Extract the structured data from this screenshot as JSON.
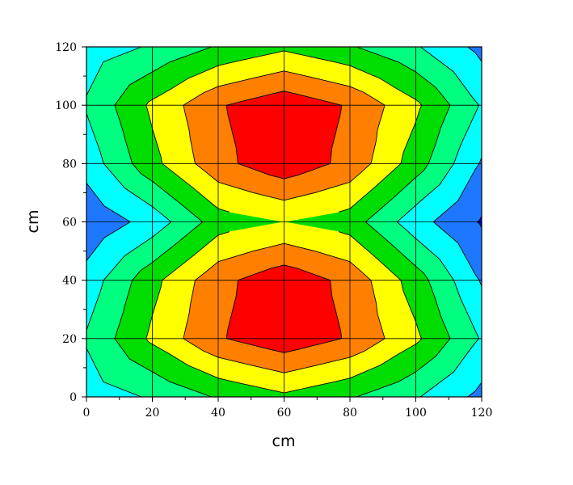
{
  "chart_data": {
    "type": "heatmap",
    "subtype": "filled-contour",
    "xlabel": "cm",
    "ylabel": "cm",
    "xlim": [
      0,
      120
    ],
    "ylim": [
      0,
      120
    ],
    "x_ticks": [
      0,
      20,
      40,
      60,
      80,
      100,
      120
    ],
    "y_ticks": [
      0,
      20,
      40,
      60,
      80,
      100,
      120
    ],
    "x_tick_labels": [
      "0",
      "20",
      "40",
      "60",
      "80",
      "100",
      "120"
    ],
    "y_tick_labels": [
      "0",
      "20",
      "40",
      "60",
      "80",
      "100",
      "120"
    ],
    "minor_tick_step": 10,
    "grid": true,
    "x": [
      0,
      20,
      40,
      60,
      80,
      100,
      120
    ],
    "y": [
      0,
      20,
      40,
      60,
      80,
      100,
      120
    ],
    "z": [
      [
        1.5,
        2.1,
        3.1,
        3.8,
        3.1,
        2.1,
        0.7
      ],
      [
        2.1,
        4.2,
        5.9,
        6.7,
        5.9,
        4.2,
        1.9
      ],
      [
        1.4,
        3.7,
        5.7,
        6.7,
        5.7,
        3.5,
        0.9
      ],
      [
        0.2,
        1.4,
        3.5,
        4.0,
        3.5,
        1.4,
        -0.1
      ],
      [
        1.4,
        3.7,
        5.7,
        6.7,
        5.7,
        3.5,
        0.9
      ],
      [
        2.1,
        4.2,
        5.9,
        6.7,
        5.9,
        4.2,
        1.9
      ],
      [
        1.5,
        2.1,
        3.1,
        3.8,
        3.1,
        2.1,
        0.7
      ]
    ],
    "levels": [
      -1,
      0,
      1,
      2,
      3,
      4,
      5,
      6,
      8
    ],
    "colors": [
      "#0000ff",
      "#1e78ff",
      "#00ffff",
      "#00ff80",
      "#00dd00",
      "#ffff00",
      "#ff8000",
      "#ff0000"
    ]
  }
}
